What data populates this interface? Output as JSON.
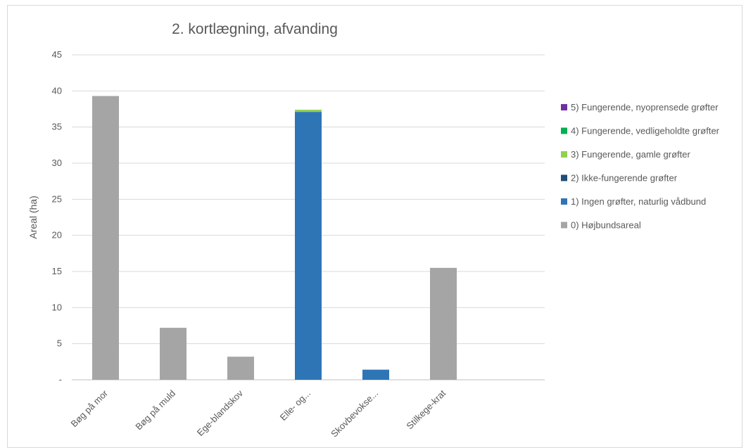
{
  "chart_data": {
    "type": "bar",
    "stacked": true,
    "title": "2. kortlægning, afvanding",
    "xlabel": "",
    "ylabel": "Areal (ha)",
    "ylim": [
      0,
      45
    ],
    "yticks": [
      0,
      5,
      10,
      15,
      20,
      25,
      30,
      35,
      40,
      45
    ],
    "ytick_labels": [
      "-",
      "5",
      "10",
      "15",
      "20",
      "25",
      "30",
      "35",
      "40",
      "45"
    ],
    "grid": true,
    "legend_position": "right",
    "categories": [
      "Bøg på mor",
      "Bøg på muld",
      "Ege-blandskov",
      "Elle- og...",
      "Skovbevokse...",
      "Stilkege-krat",
      ""
    ],
    "series": [
      {
        "name": "0) Højbundsareal",
        "color": "#a5a5a5",
        "values": [
          39.3,
          7.2,
          3.2,
          0,
          0,
          15.5,
          0
        ]
      },
      {
        "name": "1) Ingen grøfter, naturlig vådbund",
        "color": "#2e75b6",
        "values": [
          0,
          0,
          0,
          37.1,
          1.4,
          0,
          0
        ]
      },
      {
        "name": "2) Ikke-fungerende grøfter",
        "color": "#1f4e79",
        "values": [
          0,
          0,
          0,
          0,
          0,
          0,
          0
        ]
      },
      {
        "name": "3) Fungerende, gamle grøfter",
        "color": "#92d050",
        "values": [
          0,
          0,
          0,
          0.3,
          0,
          0,
          0
        ]
      },
      {
        "name": "4) Fungerende, vedligeholdte grøfter",
        "color": "#00b050",
        "values": [
          0,
          0,
          0,
          0,
          0,
          0,
          0
        ]
      },
      {
        "name": "5) Fungerende, nyoprensede grøfter",
        "color": "#7030a0",
        "values": [
          0,
          0,
          0,
          0,
          0,
          0,
          0
        ]
      }
    ]
  }
}
